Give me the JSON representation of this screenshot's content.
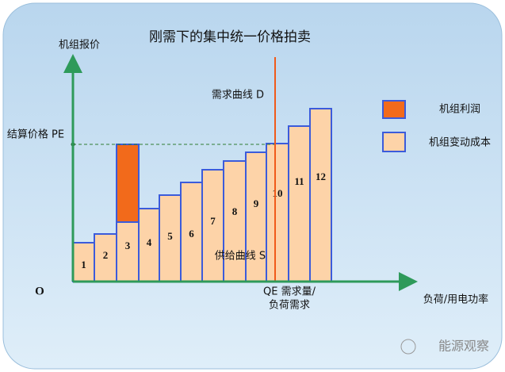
{
  "title": "刚需下的集中统一价格拍卖",
  "y_axis_label": "机组报价",
  "x_axis_label": "负荷/用电功率",
  "origin_label": "O",
  "price_label": "结算价格 PE",
  "demand_label": "需求曲线 D",
  "supply_label": "供给曲线 S",
  "quantity_label": [
    "QE 需求量/",
    "负荷需求"
  ],
  "legend": [
    "机组利润",
    "机组变动成本"
  ],
  "bars": [
    "1",
    "2",
    "3",
    "4",
    "5",
    "6",
    "7",
    "8",
    "9",
    "10",
    "11",
    "12"
  ],
  "watermark": "能源观察"
}
